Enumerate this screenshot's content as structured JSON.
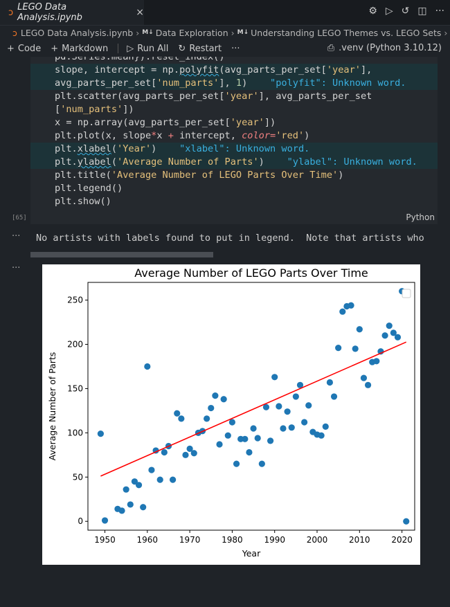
{
  "tab": {
    "title": "LEGO Data Analysis.ipynb",
    "close": "×"
  },
  "breadcrumb": {
    "file": "LEGO Data Analysis.ipynb",
    "section1": "Data Exploration",
    "section2": "Understanding LEGO Themes vs. LEGO Sets",
    "md_marker": "M↓"
  },
  "toolbar": {
    "code": "Code",
    "markdown": "Markdown",
    "run_all": "Run All",
    "restart": "Restart",
    "more": "···",
    "kernel": ".venv (Python 3.10.12)"
  },
  "cell": {
    "language": "Python",
    "exec_count": "[65]",
    "lines": [
      "pd.Series.mean}).reset_index()",
      "slope, intercept = np.polyfit(avg_parts_per_set['year'],",
      "avg_parts_per_set['num_parts'], 1)    \"polyfit\": Unknown word.",
      "plt.scatter(avg_parts_per_set['year'], avg_parts_per_set",
      "['num_parts'])",
      "x = np.array(avg_parts_per_set['year'])",
      "plt.plot(x, slope*x + intercept, color='red')",
      "plt.xlabel('Year')    \"xlabel\": Unknown word.",
      "plt.ylabel('Average Number of Parts')    \"ylabel\": Unknown word.",
      "plt.title('Average Number of LEGO Parts Over Time')",
      "plt.legend()",
      "plt.show()"
    ]
  },
  "output": {
    "stderr": "No artists with labels found to put in legend.  Note that artists who",
    "dots": "···"
  },
  "chart_data": {
    "type": "scatter",
    "title": "Average Number of LEGO Parts Over Time",
    "xlabel": "Year",
    "ylabel": "Average Number of Parts",
    "xlim": [
      1946,
      2023
    ],
    "ylim": [
      -10,
      270
    ],
    "xticks": [
      1950,
      1960,
      1970,
      1980,
      1990,
      2000,
      2010,
      2020
    ],
    "yticks": [
      0,
      50,
      100,
      150,
      200,
      250
    ],
    "point_color": "#1f77b4",
    "line_color": "#ff0000",
    "x": [
      1949,
      1950,
      1953,
      1954,
      1955,
      1956,
      1957,
      1958,
      1959,
      1960,
      1961,
      1962,
      1963,
      1964,
      1965,
      1966,
      1967,
      1968,
      1969,
      1970,
      1971,
      1972,
      1973,
      1974,
      1975,
      1976,
      1977,
      1978,
      1979,
      1980,
      1981,
      1982,
      1983,
      1984,
      1985,
      1986,
      1987,
      1988,
      1989,
      1990,
      1991,
      1992,
      1993,
      1994,
      1995,
      1996,
      1997,
      1998,
      1999,
      2000,
      2001,
      2002,
      2003,
      2004,
      2005,
      2006,
      2007,
      2008,
      2009,
      2010,
      2011,
      2012,
      2013,
      2014,
      2015,
      2016,
      2017,
      2018,
      2019,
      2020,
      2021
    ],
    "y": [
      99,
      1,
      14,
      12,
      36,
      19,
      45,
      41,
      16,
      175,
      58,
      80,
      47,
      78,
      85,
      47,
      122,
      116,
      75,
      82,
      77,
      100,
      102,
      116,
      128,
      142,
      87,
      138,
      97,
      112,
      65,
      93,
      93,
      78,
      105,
      94,
      65,
      129,
      91,
      163,
      130,
      105,
      124,
      106,
      141,
      154,
      112,
      131,
      101,
      98,
      97,
      107,
      157,
      141,
      196,
      237,
      243,
      244,
      195,
      217,
      162,
      154,
      180,
      181,
      192,
      210,
      221,
      213,
      208,
      260,
      0
    ],
    "fit": {
      "slope": 2.104,
      "intercept": -4049.6,
      "x_start": 1949,
      "x_end": 2021
    },
    "legend": "top-right (empty)",
    "grid": false
  }
}
